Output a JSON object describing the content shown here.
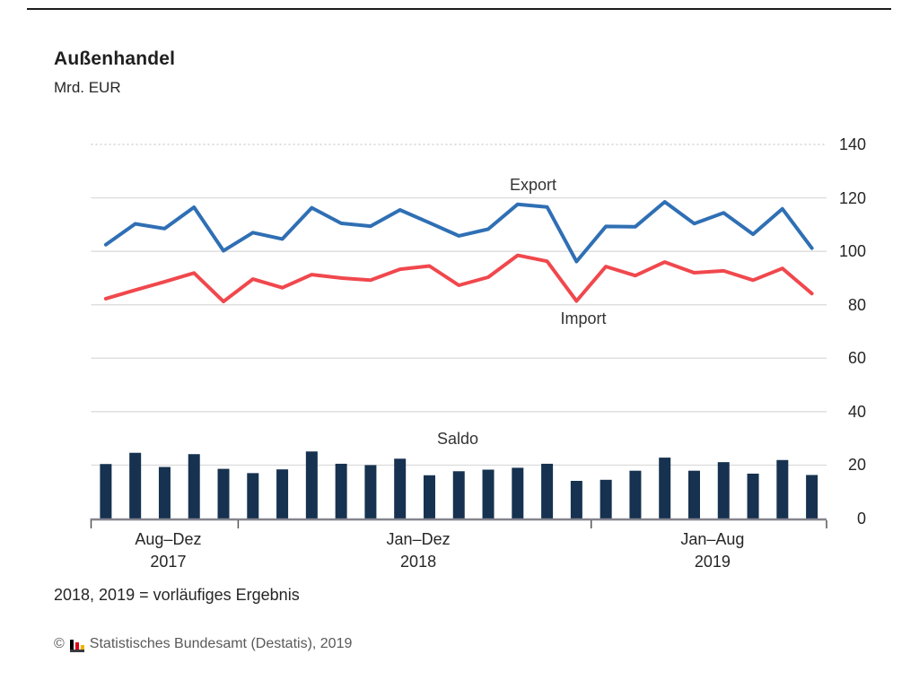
{
  "header": {
    "title": "Außenhandel",
    "subtitle": "Mrd. EUR"
  },
  "chart_data": {
    "type": "combo-line-bar",
    "title": "Außenhandel",
    "ylabel": "Mrd. EUR",
    "ylim": [
      0,
      140
    ],
    "y_ticks": [
      0,
      20,
      40,
      60,
      80,
      100,
      120,
      140
    ],
    "grid": "horizontal solid light gray; top gridline (140) dotted",
    "legend": "inline series labels inside plot",
    "categories": [
      "Aug 2017",
      "Sep 2017",
      "Okt 2017",
      "Nov 2017",
      "Dez 2017",
      "Jan 2018",
      "Feb 2018",
      "Mär 2018",
      "Apr 2018",
      "Mai 2018",
      "Jun 2018",
      "Jul 2018",
      "Aug 2018",
      "Sep 2018",
      "Okt 2018",
      "Nov 2018",
      "Dez 2018",
      "Jan 2019",
      "Feb 2019",
      "Mär 2019",
      "Apr 2019",
      "Mai 2019",
      "Jun 2019",
      "Jul 2019",
      "Aug 2019"
    ],
    "series": [
      {
        "name": "Export",
        "type": "line",
        "color": "#2f6fb4",
        "values": [
          102.5,
          110.3,
          108.5,
          116.5,
          100.2,
          107.0,
          104.6,
          116.3,
          110.5,
          109.4,
          115.5,
          110.7,
          105.8,
          108.3,
          117.6,
          116.6,
          96.2,
          109.3,
          109.2,
          118.5,
          110.4,
          114.4,
          106.4,
          115.9,
          101.2
        ]
      },
      {
        "name": "Import",
        "type": "line",
        "color": "#f0484d",
        "values": [
          82.3,
          85.5,
          88.6,
          91.9,
          81.2,
          89.6,
          86.4,
          91.3,
          90.0,
          89.2,
          93.3,
          94.5,
          87.3,
          90.3,
          98.5,
          96.3,
          81.4,
          94.3,
          90.9,
          96.0,
          92.0,
          92.7,
          89.2,
          93.6,
          84.2
        ]
      },
      {
        "name": "Saldo",
        "type": "bar",
        "color": "#163250",
        "values": [
          20.4,
          24.6,
          19.3,
          24.1,
          18.6,
          17.0,
          18.4,
          25.1,
          20.5,
          20.0,
          22.4,
          16.2,
          17.7,
          18.3,
          19.0,
          20.5,
          14.1,
          14.5,
          17.9,
          22.8,
          17.9,
          21.1,
          16.8,
          21.9,
          16.3
        ]
      }
    ],
    "x_groups": [
      {
        "line1": "Aug–Dez",
        "line2": "2017",
        "months": 5
      },
      {
        "line1": "Jan–Dez",
        "line2": "2018",
        "months": 12
      },
      {
        "line1": "Jan–Aug",
        "line2": "2019",
        "months": 8
      }
    ],
    "colors": {
      "grid": "#d9d9d9",
      "grid_top": "#c9c9c9",
      "axis": "#85858e",
      "tick": "#555555"
    }
  },
  "footnote": "2018, 2019 = vorläufiges Ergebnis",
  "copyright": {
    "symbol": "©",
    "text": "Statistisches Bundesamt (Destatis), 2019",
    "logo_colors": [
      "#000000",
      "#e10019",
      "#f0b400"
    ]
  }
}
